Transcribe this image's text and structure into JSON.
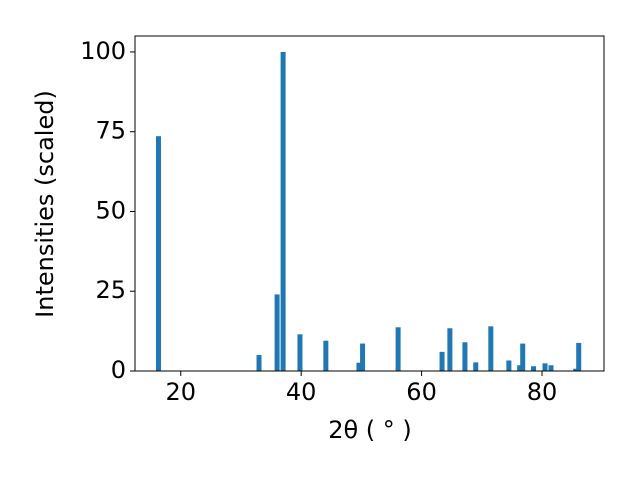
{
  "chart_data": {
    "type": "bar",
    "x": [
      16.3,
      33.0,
      36.0,
      37.0,
      39.8,
      44.1,
      49.6,
      50.2,
      56.1,
      63.4,
      64.7,
      67.2,
      69.0,
      71.5,
      74.5,
      76.3,
      76.8,
      78.6,
      80.5,
      81.5,
      85.6,
      86.1
    ],
    "values": [
      73.6,
      5,
      24,
      100,
      11.5,
      9.5,
      2.6,
      8.6,
      13.7,
      6,
      13.4,
      9,
      2.7,
      14,
      3.3,
      1.8,
      8.6,
      1.5,
      2.4,
      1.8,
      0.7,
      8.8
    ],
    "color": "#1f77b4",
    "xlim": [
      12.4,
      90.3
    ],
    "xticks": [
      20,
      40,
      60,
      80
    ],
    "ylim": [
      0,
      105
    ],
    "yticks": [
      0,
      25,
      50,
      75,
      100
    ],
    "x_label": "2θ ( ° )",
    "y_label": "Intensities (scaled)",
    "grid": false
  }
}
